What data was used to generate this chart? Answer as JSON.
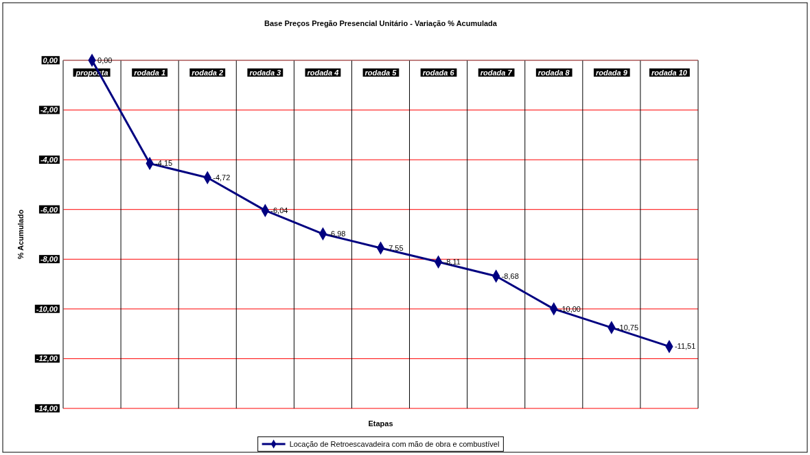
{
  "chart_data": {
    "type": "line",
    "title": "Base Preços Pregão Presencial Unitário - Variação % Acumulada",
    "xlabel": "Etapas",
    "ylabel": "% Acumulado",
    "categories": [
      "proposta",
      "rodada 1",
      "rodada 2",
      "rodada 3",
      "rodada 4",
      "rodada 5",
      "rodada 6",
      "rodada 7",
      "rodada 8",
      "rodada 9",
      "rodada 10"
    ],
    "series": [
      {
        "name": "Locação de Retroescavadeira com mão de obra e combustível",
        "color": "#000080",
        "values": [
          0,
          -4.15,
          -4.72,
          -6.04,
          -6.98,
          -7.55,
          -8.11,
          -8.68,
          -10,
          -10.75,
          -11.51
        ],
        "value_labels": [
          "0,00",
          "-4,15",
          "-4,72",
          "-6,04",
          "-6,98",
          "-7,55",
          "-8,11",
          "-8,68",
          "-10,00",
          "-10,75",
          "-11,51"
        ]
      }
    ],
    "ylim": [
      -14,
      0
    ],
    "yticks": [
      {
        "value": 0,
        "label": "0,00"
      },
      {
        "value": -2,
        "label": "-2,00"
      },
      {
        "value": -4,
        "label": "-4,00"
      },
      {
        "value": -6,
        "label": "-6,00"
      },
      {
        "value": -8,
        "label": "-8,00"
      },
      {
        "value": -10,
        "label": "-10,00"
      },
      {
        "value": -12,
        "label": "-12,00"
      },
      {
        "value": -14,
        "label": "-14,00"
      }
    ],
    "grid": true,
    "legend": "bottom",
    "marker": "diamond",
    "line_style": "solid"
  }
}
